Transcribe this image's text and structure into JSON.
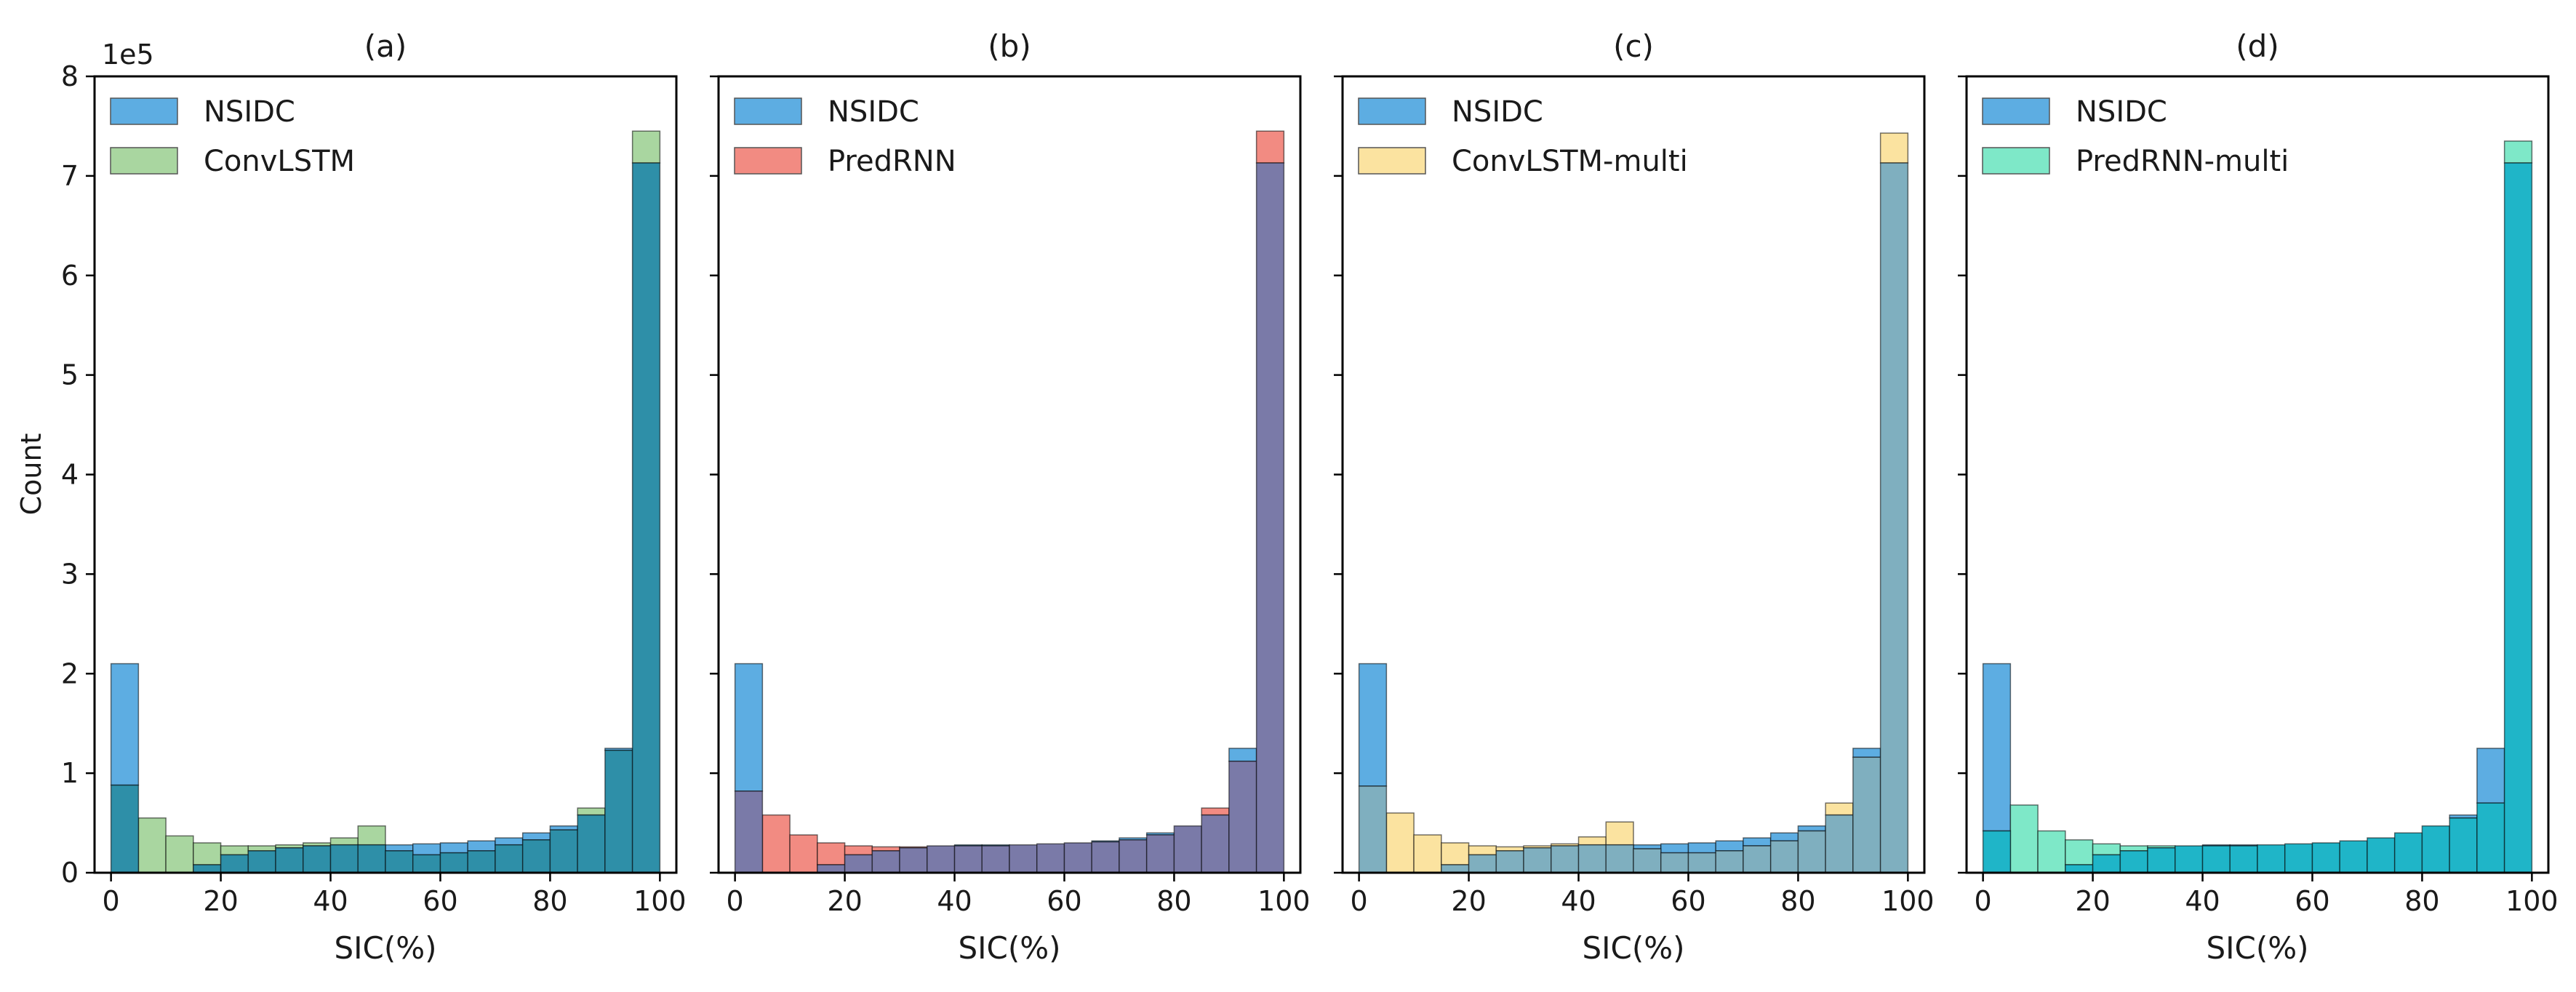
{
  "figure": {
    "y_axis_label": "Count",
    "y_scale_label": "1e5",
    "x_axis_label": "SIC(%)"
  },
  "chart_data": [
    {
      "type": "bar",
      "title": "(a)",
      "xlabel": "SIC(%)",
      "ylabel": "Count",
      "xlim": [
        -3,
        103
      ],
      "ylim": [
        0,
        8
      ],
      "y_scale": "1e5",
      "x_ticks": [
        0,
        20,
        40,
        60,
        80,
        100
      ],
      "y_ticks": [
        0,
        1,
        2,
        3,
        4,
        5,
        6,
        7,
        8
      ],
      "bin_edges": [
        0,
        5,
        10,
        15,
        20,
        25,
        30,
        35,
        40,
        45,
        50,
        55,
        60,
        65,
        70,
        75,
        80,
        85,
        90,
        95,
        100
      ],
      "legend_position": "top-left",
      "series": [
        {
          "name": "NSIDC",
          "color": "#5DADE2",
          "values": [
            2.1,
            0.0,
            0.0,
            0.08,
            0.18,
            0.22,
            0.25,
            0.27,
            0.28,
            0.28,
            0.28,
            0.29,
            0.3,
            0.32,
            0.35,
            0.4,
            0.47,
            0.58,
            1.25,
            7.13
          ]
        },
        {
          "name": "ConvLSTM",
          "color": "#A9D6A0",
          "values": [
            0.88,
            0.55,
            0.37,
            0.3,
            0.27,
            0.27,
            0.28,
            0.3,
            0.35,
            0.47,
            0.22,
            0.18,
            0.2,
            0.22,
            0.28,
            0.33,
            0.43,
            0.65,
            1.23,
            7.45
          ]
        }
      ]
    },
    {
      "type": "bar",
      "title": "(b)",
      "xlabel": "SIC(%)",
      "ylabel": "",
      "xlim": [
        -3,
        103
      ],
      "ylim": [
        0,
        8
      ],
      "y_scale": "1e5",
      "x_ticks": [
        0,
        20,
        40,
        60,
        80,
        100
      ],
      "y_ticks": [
        0,
        1,
        2,
        3,
        4,
        5,
        6,
        7,
        8
      ],
      "bin_edges": [
        0,
        5,
        10,
        15,
        20,
        25,
        30,
        35,
        40,
        45,
        50,
        55,
        60,
        65,
        70,
        75,
        80,
        85,
        90,
        95,
        100
      ],
      "legend_position": "top-left",
      "series": [
        {
          "name": "NSIDC",
          "color": "#5DADE2",
          "values": [
            2.1,
            0.0,
            0.0,
            0.08,
            0.18,
            0.22,
            0.25,
            0.27,
            0.28,
            0.28,
            0.28,
            0.29,
            0.3,
            0.32,
            0.35,
            0.4,
            0.47,
            0.58,
            1.25,
            7.13
          ]
        },
        {
          "name": "PredRNN",
          "color": "#F28B82",
          "values": [
            0.82,
            0.58,
            0.38,
            0.3,
            0.27,
            0.26,
            0.26,
            0.27,
            0.27,
            0.27,
            0.28,
            0.29,
            0.3,
            0.31,
            0.33,
            0.38,
            0.47,
            0.65,
            1.12,
            7.45
          ]
        }
      ]
    },
    {
      "type": "bar",
      "title": "(c)",
      "xlabel": "SIC(%)",
      "ylabel": "",
      "xlim": [
        -3,
        103
      ],
      "ylim": [
        0,
        8
      ],
      "y_scale": "1e5",
      "x_ticks": [
        0,
        20,
        40,
        60,
        80,
        100
      ],
      "y_ticks": [
        0,
        1,
        2,
        3,
        4,
        5,
        6,
        7,
        8
      ],
      "bin_edges": [
        0,
        5,
        10,
        15,
        20,
        25,
        30,
        35,
        40,
        45,
        50,
        55,
        60,
        65,
        70,
        75,
        80,
        85,
        90,
        95,
        100
      ],
      "legend_position": "top-left",
      "series": [
        {
          "name": "NSIDC",
          "color": "#5DADE2",
          "values": [
            2.1,
            0.0,
            0.0,
            0.08,
            0.18,
            0.22,
            0.25,
            0.27,
            0.28,
            0.28,
            0.28,
            0.29,
            0.3,
            0.32,
            0.35,
            0.4,
            0.47,
            0.58,
            1.25,
            7.13
          ]
        },
        {
          "name": "ConvLSTM-multi",
          "color": "#FBE3A0",
          "values": [
            0.87,
            0.6,
            0.38,
            0.3,
            0.27,
            0.26,
            0.27,
            0.29,
            0.36,
            0.51,
            0.24,
            0.2,
            0.2,
            0.22,
            0.27,
            0.32,
            0.42,
            0.7,
            1.16,
            7.43
          ]
        }
      ]
    },
    {
      "type": "bar",
      "title": "(d)",
      "xlabel": "SIC(%)",
      "ylabel": "",
      "xlim": [
        -3,
        103
      ],
      "ylim": [
        0,
        8
      ],
      "y_scale": "1e5",
      "x_ticks": [
        0,
        20,
        40,
        60,
        80,
        100
      ],
      "y_ticks": [
        0,
        1,
        2,
        3,
        4,
        5,
        6,
        7,
        8
      ],
      "bin_edges": [
        0,
        5,
        10,
        15,
        20,
        25,
        30,
        35,
        40,
        45,
        50,
        55,
        60,
        65,
        70,
        75,
        80,
        85,
        90,
        95,
        100
      ],
      "legend_position": "top-left",
      "series": [
        {
          "name": "NSIDC",
          "color": "#5DADE2",
          "values": [
            2.1,
            0.0,
            0.0,
            0.08,
            0.18,
            0.22,
            0.25,
            0.27,
            0.28,
            0.28,
            0.28,
            0.29,
            0.3,
            0.32,
            0.35,
            0.4,
            0.47,
            0.58,
            1.25,
            7.13
          ]
        },
        {
          "name": "PredRNN-multi",
          "color": "#7EE8C8",
          "values": [
            0.42,
            0.68,
            0.42,
            0.33,
            0.29,
            0.27,
            0.27,
            0.27,
            0.27,
            0.27,
            0.28,
            0.29,
            0.3,
            0.32,
            0.35,
            0.4,
            0.47,
            0.55,
            0.7,
            7.35
          ]
        }
      ]
    }
  ]
}
